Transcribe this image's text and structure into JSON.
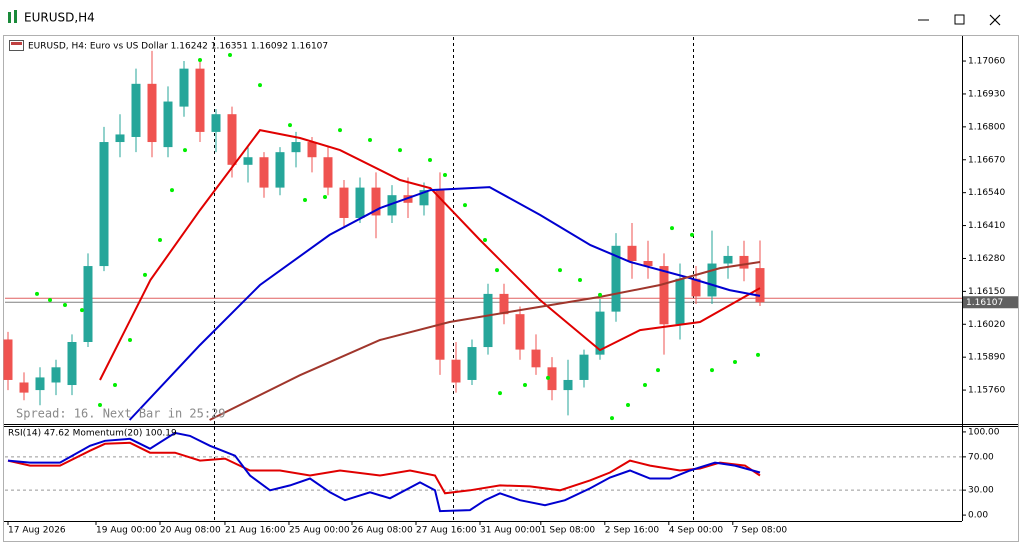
{
  "window": {
    "title": "EURUSD,H4"
  },
  "chart_data": [
    {
      "type": "candlestick",
      "title": "EURUSD, H4:  Euro vs US Dollar  1.16242 1.16351 1.16092 1.16107",
      "status_text": "Spread: 16. Next Bar in 25:29",
      "xlim": [
        -0.1875,
        59.625
      ],
      "xticks": [
        {
          "value": 0,
          "label": "17 Aug 2026"
        },
        {
          "value": 5.5,
          "label": "19 Aug 00:00"
        },
        {
          "value": 9.5,
          "label": "20 Aug 08:00"
        },
        {
          "value": 13.56,
          "label": "21 Aug 16:00"
        },
        {
          "value": 17.56,
          "label": "25 Aug 00:00"
        },
        {
          "value": 21.5,
          "label": "26 Aug 08:00"
        },
        {
          "value": 25.5,
          "label": "27 Aug 16:00"
        },
        {
          "value": 29.5,
          "label": "31 Aug 00:00"
        },
        {
          "value": 33.3,
          "label": "1 Sep 08:00"
        },
        {
          "value": 37.3,
          "label": "2 Sep 16:00"
        },
        {
          "value": 41.3,
          "label": "4 Sep 00:00"
        },
        {
          "value": 45.3,
          "label": "7 Sep 08:00"
        }
      ],
      "ylim": [
        1.15626,
        1.17155
      ],
      "yticks": [
        {
          "value": 1.1706,
          "label": "1.17060"
        },
        {
          "value": 1.1693,
          "label": "1.16930"
        },
        {
          "value": 1.168,
          "label": "1.16800"
        },
        {
          "value": 1.1667,
          "label": "1.16670"
        },
        {
          "value": 1.1654,
          "label": "1.16540"
        },
        {
          "value": 1.1641,
          "label": "1.16410"
        },
        {
          "value": 1.1628,
          "label": "1.16280"
        },
        {
          "value": 1.1615,
          "label": "1.16150"
        },
        {
          "value": 1.1602,
          "label": "1.16020"
        },
        {
          "value": 1.1589,
          "label": "1.15890"
        },
        {
          "value": 1.1576,
          "label": "1.15760"
        }
      ],
      "bull_color": "#26a69a",
      "bear_color": "#ef5350",
      "open": [
        1.1596,
        1.1579,
        1.1576,
        1.1579,
        1.1578,
        1.1595,
        1.1625,
        1.1674,
        1.1676,
        1.1697,
        1.1672,
        1.1688,
        1.1703,
        1.1678,
        1.1685,
        1.1665,
        1.1668,
        1.1656,
        1.167,
        1.1674,
        1.1668,
        1.1656,
        1.1644,
        1.1656,
        1.1645,
        1.1653,
        1.1649,
        1.1655,
        1.1588,
        1.158,
        1.1593,
        1.1614,
        1.1606,
        1.1592,
        1.1585,
        1.1576,
        1.158,
        1.159,
        1.1607,
        1.1633,
        1.1627,
        1.1625,
        1.1602,
        1.162,
        1.1613,
        1.1626,
        1.1629,
        1.16242
      ],
      "high": [
        1.1599,
        1.1583,
        1.1585,
        1.1588,
        1.1598,
        1.163,
        1.168,
        1.1685,
        1.1703,
        1.171,
        1.1696,
        1.1706,
        1.1707,
        1.1687,
        1.1688,
        1.1672,
        1.167,
        1.1672,
        1.1678,
        1.1676,
        1.1672,
        1.1659,
        1.166,
        1.1662,
        1.1657,
        1.166,
        1.1658,
        1.1662,
        1.1595,
        1.1596,
        1.1618,
        1.1618,
        1.1609,
        1.1598,
        1.1589,
        1.1588,
        1.1592,
        1.1612,
        1.1638,
        1.1642,
        1.1635,
        1.163,
        1.1626,
        1.1625,
        1.1639,
        1.1633,
        1.1635,
        1.16351
      ],
      "low": [
        1.1576,
        1.1572,
        1.157,
        1.1574,
        1.1574,
        1.1593,
        1.1623,
        1.1668,
        1.167,
        1.1668,
        1.1668,
        1.1684,
        1.1674,
        1.167,
        1.166,
        1.1658,
        1.1652,
        1.1653,
        1.1664,
        1.1662,
        1.1653,
        1.164,
        1.1642,
        1.1636,
        1.1642,
        1.1644,
        1.1645,
        1.1582,
        1.1575,
        1.1578,
        1.159,
        1.1602,
        1.1588,
        1.1582,
        1.1572,
        1.1566,
        1.1577,
        1.1588,
        1.1603,
        1.162,
        1.162,
        1.159,
        1.1596,
        1.161,
        1.161,
        1.162,
        1.1619,
        1.16092
      ],
      "close": [
        1.158,
        1.1575,
        1.1581,
        1.1585,
        1.1595,
        1.1625,
        1.1674,
        1.1677,
        1.1697,
        1.1674,
        1.169,
        1.1703,
        1.1678,
        1.1685,
        1.1665,
        1.1668,
        1.1656,
        1.167,
        1.1674,
        1.1668,
        1.1656,
        1.1644,
        1.1656,
        1.1645,
        1.1653,
        1.165,
        1.1655,
        1.1588,
        1.1579,
        1.1593,
        1.1614,
        1.1606,
        1.1592,
        1.1585,
        1.1576,
        1.158,
        1.159,
        1.1607,
        1.1633,
        1.1627,
        1.1625,
        1.1602,
        1.162,
        1.1613,
        1.1626,
        1.1629,
        1.1624,
        1.16107
      ],
      "series": [
        {
          "color": "#e00000",
          "x": [
            5.75,
            8.9,
            12,
            15.75,
            18.25,
            20.75,
            24.5,
            26.4,
            29.5,
            33.25,
            37,
            39.5,
            43.25,
            47
          ],
          "values": [
            1.158,
            1.16195,
            1.16471,
            1.16787,
            1.16756,
            1.16708,
            1.1659,
            1.16558,
            1.16353,
            1.16116,
            1.15918,
            1.15997,
            1.16029,
            1.16163
          ]
        },
        {
          "color": "#0000d0",
          "x": [
            7.6,
            12,
            15.75,
            20.1,
            23.25,
            26.4,
            30.1,
            33.25,
            36.4,
            38.9,
            42.6,
            45.1,
            47
          ],
          "values": [
            1.15642,
            1.15938,
            1.16175,
            1.16373,
            1.16479,
            1.1655,
            1.16562,
            1.16452,
            1.16333,
            1.16266,
            1.16203,
            1.16155,
            1.16132
          ]
        },
        {
          "color": "#a0362c",
          "x": [
            12.6,
            18.25,
            23.25,
            27.6,
            32,
            37,
            40.75,
            44.5,
            47
          ],
          "values": [
            1.15642,
            1.15819,
            1.15958,
            1.16029,
            1.16076,
            1.16128,
            1.16175,
            1.16242,
            1.16266
          ]
        }
      ],
      "sar": {
        "color": "#00ee00",
        "x": [
          1.8125,
          2.625,
          3.5625,
          4.625,
          5.75,
          6.6875,
          7.625,
          8.5625,
          9.5,
          10.25,
          11.0625,
          12,
          13.875,
          15.75,
          17.625,
          18.5625,
          19.8125,
          20.75,
          22.625,
          24.5,
          26.375,
          27.3125,
          28.5625,
          29.8125,
          30.5625,
          30.75,
          32.3125,
          33.75,
          34.5,
          35.75,
          37,
          37.75,
          38.75,
          39.8125,
          40.625,
          41.5,
          42.75,
          44,
          45.4375,
          46.875
        ],
        "values": [
          1.1614,
          1.16116,
          1.16096,
          1.16076,
          1.15701,
          1.1578,
          1.15958,
          1.16215,
          1.16353,
          1.1655,
          1.16708,
          1.17064,
          1.17084,
          1.16965,
          1.16807,
          1.16511,
          1.16523,
          1.16787,
          1.16748,
          1.16708,
          1.16669,
          1.1661,
          1.16491,
          1.16353,
          1.16234,
          1.15748,
          1.1578,
          1.15808,
          1.16234,
          1.16195,
          1.16136,
          1.15649,
          1.15701,
          1.1578,
          1.15839,
          1.164,
          1.16373,
          1.15839,
          1.15871,
          1.15899
        ]
      },
      "current_price": {
        "value": 1.16107,
        "label": "1.16107"
      },
      "ask_price": 1.16123
    },
    {
      "type": "line",
      "title": "RSI(14) 47.62 Momentum(20) 100.19",
      "ylim": [
        -7.1,
        105.9
      ],
      "yticks": [
        {
          "value": 100,
          "label": "100.00"
        },
        {
          "value": 70,
          "label": "70.00"
        },
        {
          "value": 30,
          "label": "30.00"
        },
        {
          "value": 0,
          "label": "0.00"
        }
      ],
      "levels": [
        70,
        30
      ],
      "series": [
        {
          "color": "#e00000",
          "x": [
            0,
            1.375,
            3.25,
            5.125,
            6.06,
            7.625,
            8.875,
            10.44,
            12,
            13.56,
            15.125,
            17,
            18.875,
            20.75,
            23.25,
            25.125,
            26.69,
            27.31,
            28.875,
            30.75,
            32.625,
            34.5,
            36.375,
            37.625,
            38.875,
            40.125,
            42,
            43.25,
            44.5,
            46.06,
            47
          ],
          "values": [
            65.5,
            59.5,
            59.5,
            77.4,
            85.7,
            86.9,
            75,
            75,
            65.5,
            67.9,
            53.6,
            53.6,
            47.6,
            53.6,
            47.6,
            53.6,
            47.6,
            26.2,
            29.8,
            35.7,
            34.5,
            29.8,
            41.7,
            51.2,
            65.5,
            59.5,
            53.6,
            56,
            63.1,
            59.5,
            47.6
          ]
        },
        {
          "color": "#0000d0",
          "x": [
            0,
            1.375,
            3.25,
            5.125,
            6.06,
            7.625,
            8.875,
            10.44,
            11.375,
            12.625,
            14.19,
            15.125,
            16.375,
            17.625,
            18.875,
            20.125,
            21.06,
            22.625,
            23.875,
            25.75,
            26.69,
            27,
            28.875,
            29.81,
            30.75,
            32,
            33.56,
            34.81,
            36.375,
            37.625,
            38.875,
            40.125,
            41.375,
            42.625,
            44.19,
            45.44,
            47
          ],
          "values": [
            65.5,
            63.1,
            63.1,
            83.3,
            89.3,
            91.7,
            79.8,
            98.8,
            95.2,
            83.3,
            71.4,
            47.6,
            29.8,
            35.7,
            44,
            27.4,
            17.9,
            27.4,
            20.2,
            39.3,
            29.8,
            4.8,
            6,
            17.9,
            26.2,
            17.9,
            11.9,
            17.9,
            32.1,
            45.2,
            53.6,
            44,
            44,
            53.6,
            63.1,
            59.5,
            51.2
          ]
        }
      ]
    }
  ]
}
